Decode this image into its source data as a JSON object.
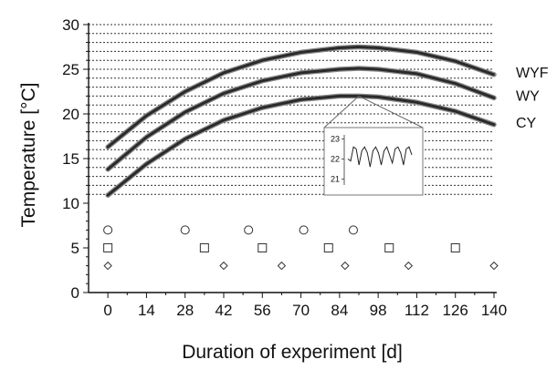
{
  "chart_data": {
    "type": "line",
    "xlabel": "Duration of experiment [d]",
    "ylabel": "Temperature [°C]",
    "xlim": [
      -7,
      140
    ],
    "ylim": [
      0,
      30
    ],
    "xticks": [
      0,
      14,
      28,
      42,
      56,
      70,
      84,
      98,
      112,
      126,
      140
    ],
    "yticks": [
      0,
      5,
      10,
      15,
      20,
      25,
      30
    ],
    "grid_y_dotted": [
      11,
      12,
      13,
      14,
      15,
      16,
      17,
      18,
      19,
      20,
      21,
      22,
      23,
      24,
      25,
      26,
      27,
      28,
      29,
      30
    ],
    "series": [
      {
        "name": "WYF",
        "x": [
          0,
          14,
          28,
          42,
          56,
          70,
          84,
          91,
          98,
          112,
          126,
          140
        ],
        "values": [
          16.3,
          19.8,
          22.5,
          24.6,
          26.0,
          26.9,
          27.4,
          27.5,
          27.4,
          26.9,
          25.9,
          24.4
        ]
      },
      {
        "name": "WY",
        "x": [
          0,
          14,
          28,
          42,
          56,
          70,
          84,
          91,
          98,
          112,
          126,
          140
        ],
        "values": [
          13.8,
          17.4,
          20.2,
          22.3,
          23.7,
          24.6,
          25.0,
          25.1,
          25.0,
          24.5,
          23.4,
          21.8
        ]
      },
      {
        "name": "CY",
        "x": [
          0,
          14,
          28,
          42,
          56,
          70,
          84,
          91,
          98,
          112,
          126,
          140
        ],
        "values": [
          10.9,
          14.4,
          17.2,
          19.3,
          20.7,
          21.6,
          22.0,
          22.0,
          21.9,
          21.3,
          20.3,
          18.8
        ]
      }
    ],
    "sampling_markers": [
      {
        "shape": "circle",
        "y": 7,
        "x": [
          0,
          28,
          51,
          71,
          89
        ]
      },
      {
        "shape": "square",
        "y": 5,
        "x": [
          0,
          35,
          56,
          80,
          102,
          126
        ]
      },
      {
        "shape": "diamond",
        "y": 3,
        "x": [
          0,
          42,
          63,
          86,
          109,
          140
        ]
      }
    ],
    "inset": {
      "yticks": [
        21,
        22,
        23
      ],
      "ylim": [
        20.7,
        23.2
      ],
      "values": [
        22.0,
        21.9,
        22.6,
        22.5,
        21.7,
        22.4,
        22.6,
        22.3,
        21.6,
        22.4,
        22.6,
        22.3,
        21.7,
        22.4,
        22.6,
        22.2,
        21.8,
        22.5,
        22.6,
        22.3,
        21.7,
        22.5,
        22.6,
        22.2
      ]
    }
  }
}
